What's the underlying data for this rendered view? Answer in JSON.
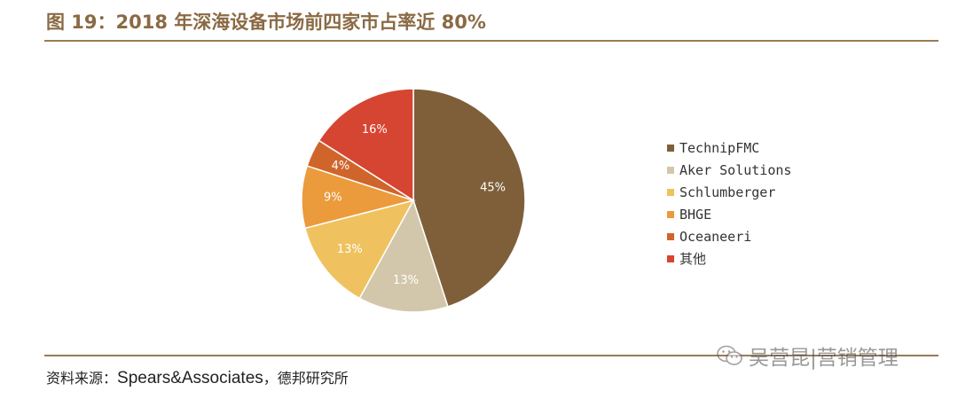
{
  "title": "图 19：2018 年深海设备市场前四家市占率近 80%",
  "chart_data": {
    "type": "pie",
    "title": "",
    "slices": [
      {
        "label": "TechnipFMC",
        "value": 45,
        "display": "45%",
        "color": "#7f5f39"
      },
      {
        "label": "Aker Solutions",
        "value": 13,
        "display": "13%",
        "color": "#d3c7ab"
      },
      {
        "label": "Schlumberger",
        "value": 13,
        "display": "13%",
        "color": "#efc25f"
      },
      {
        "label": "BHGE",
        "value": 9,
        "display": "9%",
        "color": "#eb9a3c"
      },
      {
        "label": "Oceaneeri",
        "value": 4,
        "display": "4%",
        "color": "#d0652b"
      },
      {
        "label": "其他",
        "value": 16,
        "display": "16%",
        "color": "#d64531"
      }
    ],
    "legend_position": "right"
  },
  "source": {
    "prefix": "资料来源：",
    "main": "Spears&Associates",
    "suffix": "，德邦研究所"
  },
  "watermark": {
    "text": "吴营昆|营销管理",
    "icon": "wechat-icon"
  }
}
